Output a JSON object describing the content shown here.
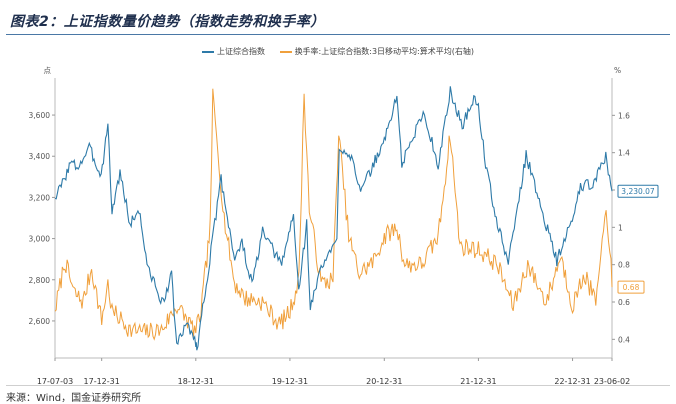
{
  "title": "图表2：上证指数量价趋势（指数走势和换手率）",
  "source": "来源：Wind，国金证券研究所",
  "chart_data": {
    "type": "line",
    "title": "图表2：上证指数量价趋势（指数走势和换手率）",
    "x_ticks": [
      "17-07-03",
      "17-12-31",
      "18-12-31",
      "19-12-31",
      "20-12-31",
      "21-12-31",
      "22-12-31",
      "23-06-02"
    ],
    "x_start": "2017-07-03",
    "x_end": "2023-06-02",
    "y_left": {
      "unit": "点",
      "ticks": [
        2600,
        2800,
        3000,
        3200,
        3400,
        3600
      ],
      "tick_labels": [
        "2,600",
        "2,800",
        "3,000",
        "3,200",
        "3,400",
        "3,600"
      ],
      "ylim": [
        2420,
        3780
      ]
    },
    "y_right": {
      "unit": "%",
      "ticks": [
        0.4,
        0.6,
        0.8,
        1.0,
        1.2,
        1.4,
        1.6
      ],
      "tick_labels": [
        "0.4",
        "0.6",
        "0.8",
        "1",
        "1.2",
        "1.4",
        "1.6"
      ],
      "ylim": [
        0.3,
        1.8
      ]
    },
    "grid": false,
    "legend": "top-center",
    "series": [
      {
        "name": "上证综合指数",
        "axis": "left",
        "color": "#2e7aa8",
        "end_label": "3,230.07",
        "points": [
          [
            "2017-07-03",
            3195
          ],
          [
            "2017-08-01",
            3270
          ],
          [
            "2017-09-01",
            3365
          ],
          [
            "2017-10-01",
            3350
          ],
          [
            "2017-11-13",
            3440
          ],
          [
            "2017-12-29",
            3307
          ],
          [
            "2018-01-24",
            3559
          ],
          [
            "2018-02-09",
            3130
          ],
          [
            "2018-03-12",
            3320
          ],
          [
            "2018-04-20",
            3070
          ],
          [
            "2018-05-25",
            3141
          ],
          [
            "2018-06-29",
            2847
          ],
          [
            "2018-08-01",
            2768
          ],
          [
            "2018-08-17",
            2669
          ],
          [
            "2018-09-28",
            2821
          ],
          [
            "2018-10-18",
            2487
          ],
          [
            "2018-11-30",
            2588
          ],
          [
            "2018-12-31",
            2494
          ],
          [
            "2019-01-04",
            2464
          ],
          [
            "2019-02-28",
            2940
          ],
          [
            "2019-04-08",
            3288
          ],
          [
            "2019-05-31",
            2899
          ],
          [
            "2019-06-28",
            2979
          ],
          [
            "2019-08-06",
            2777
          ],
          [
            "2019-09-16",
            3031
          ],
          [
            "2019-11-29",
            2871
          ],
          [
            "2019-12-31",
            3050
          ],
          [
            "2020-01-14",
            3106
          ],
          [
            "2020-02-03",
            2746
          ],
          [
            "2020-03-05",
            3071
          ],
          [
            "2020-03-19",
            2660
          ],
          [
            "2020-04-30",
            2860
          ],
          [
            "2020-06-30",
            2985
          ],
          [
            "2020-07-09",
            3450
          ],
          [
            "2020-08-31",
            3395
          ],
          [
            "2020-09-30",
            3218
          ],
          [
            "2020-11-30",
            3392
          ],
          [
            "2020-12-31",
            3473
          ],
          [
            "2021-02-18",
            3696
          ],
          [
            "2021-03-09",
            3360
          ],
          [
            "2021-05-31",
            3615
          ],
          [
            "2021-07-28",
            3361
          ],
          [
            "2021-09-13",
            3715
          ],
          [
            "2021-10-29",
            3547
          ],
          [
            "2021-12-13",
            3681
          ],
          [
            "2021-12-31",
            3640
          ],
          [
            "2022-01-28",
            3361
          ],
          [
            "2022-03-15",
            3064
          ],
          [
            "2022-04-26",
            2886
          ],
          [
            "2022-07-04",
            3405
          ],
          [
            "2022-09-30",
            3024
          ],
          [
            "2022-10-31",
            2893
          ],
          [
            "2022-12-30",
            3089
          ],
          [
            "2023-01-31",
            3255
          ],
          [
            "2023-03-15",
            3263
          ],
          [
            "2023-05-09",
            3395
          ],
          [
            "2023-06-02",
            3230
          ]
        ]
      },
      {
        "name": "换手率:上证综合指数:3日移动平均:算术平均(右轴)",
        "axis": "right",
        "color": "#f0a03c",
        "end_label": "0.68",
        "points": [
          [
            "2017-07-03",
            0.55
          ],
          [
            "2017-08-10",
            0.82
          ],
          [
            "2017-09-15",
            0.65
          ],
          [
            "2017-10-20",
            0.6
          ],
          [
            "2017-11-22",
            0.78
          ],
          [
            "2017-12-31",
            0.5
          ],
          [
            "2018-01-24",
            0.7
          ],
          [
            "2018-02-09",
            0.55
          ],
          [
            "2018-03-20",
            0.5
          ],
          [
            "2018-04-20",
            0.45
          ],
          [
            "2018-06-20",
            0.44
          ],
          [
            "2018-08-20",
            0.45
          ],
          [
            "2018-10-19",
            0.58
          ],
          [
            "2018-12-31",
            0.44
          ],
          [
            "2019-01-20",
            0.55
          ],
          [
            "2019-02-25",
            1.0
          ],
          [
            "2019-03-07",
            1.7
          ],
          [
            "2019-04-20",
            1.05
          ],
          [
            "2019-05-30",
            0.7
          ],
          [
            "2019-07-10",
            0.62
          ],
          [
            "2019-09-15",
            0.6
          ],
          [
            "2019-11-20",
            0.48
          ],
          [
            "2019-12-31",
            0.55
          ],
          [
            "2020-02-04",
            0.72
          ],
          [
            "2020-02-24",
            1.72
          ],
          [
            "2020-03-15",
            1.1
          ],
          [
            "2020-04-30",
            0.7
          ],
          [
            "2020-06-15",
            0.72
          ],
          [
            "2020-07-07",
            1.5
          ],
          [
            "2020-08-15",
            0.95
          ],
          [
            "2020-09-25",
            0.75
          ],
          [
            "2020-11-20",
            0.82
          ],
          [
            "2020-12-31",
            0.95
          ],
          [
            "2021-02-18",
            1.0
          ],
          [
            "2021-03-20",
            0.8
          ],
          [
            "2021-05-25",
            0.8
          ],
          [
            "2021-07-28",
            0.95
          ],
          [
            "2021-09-13",
            1.5
          ],
          [
            "2021-10-20",
            0.9
          ],
          [
            "2021-12-31",
            0.88
          ],
          [
            "2022-03-15",
            0.8
          ],
          [
            "2022-05-15",
            0.58
          ],
          [
            "2022-07-10",
            0.8
          ],
          [
            "2022-09-20",
            0.6
          ],
          [
            "2022-11-15",
            0.85
          ],
          [
            "2022-12-31",
            0.58
          ],
          [
            "2023-02-15",
            0.75
          ],
          [
            "2023-03-31",
            0.6
          ],
          [
            "2023-04-20",
            0.82
          ],
          [
            "2023-05-10",
            1.1
          ],
          [
            "2023-05-25",
            0.9
          ],
          [
            "2023-06-02",
            0.68
          ]
        ]
      }
    ]
  }
}
